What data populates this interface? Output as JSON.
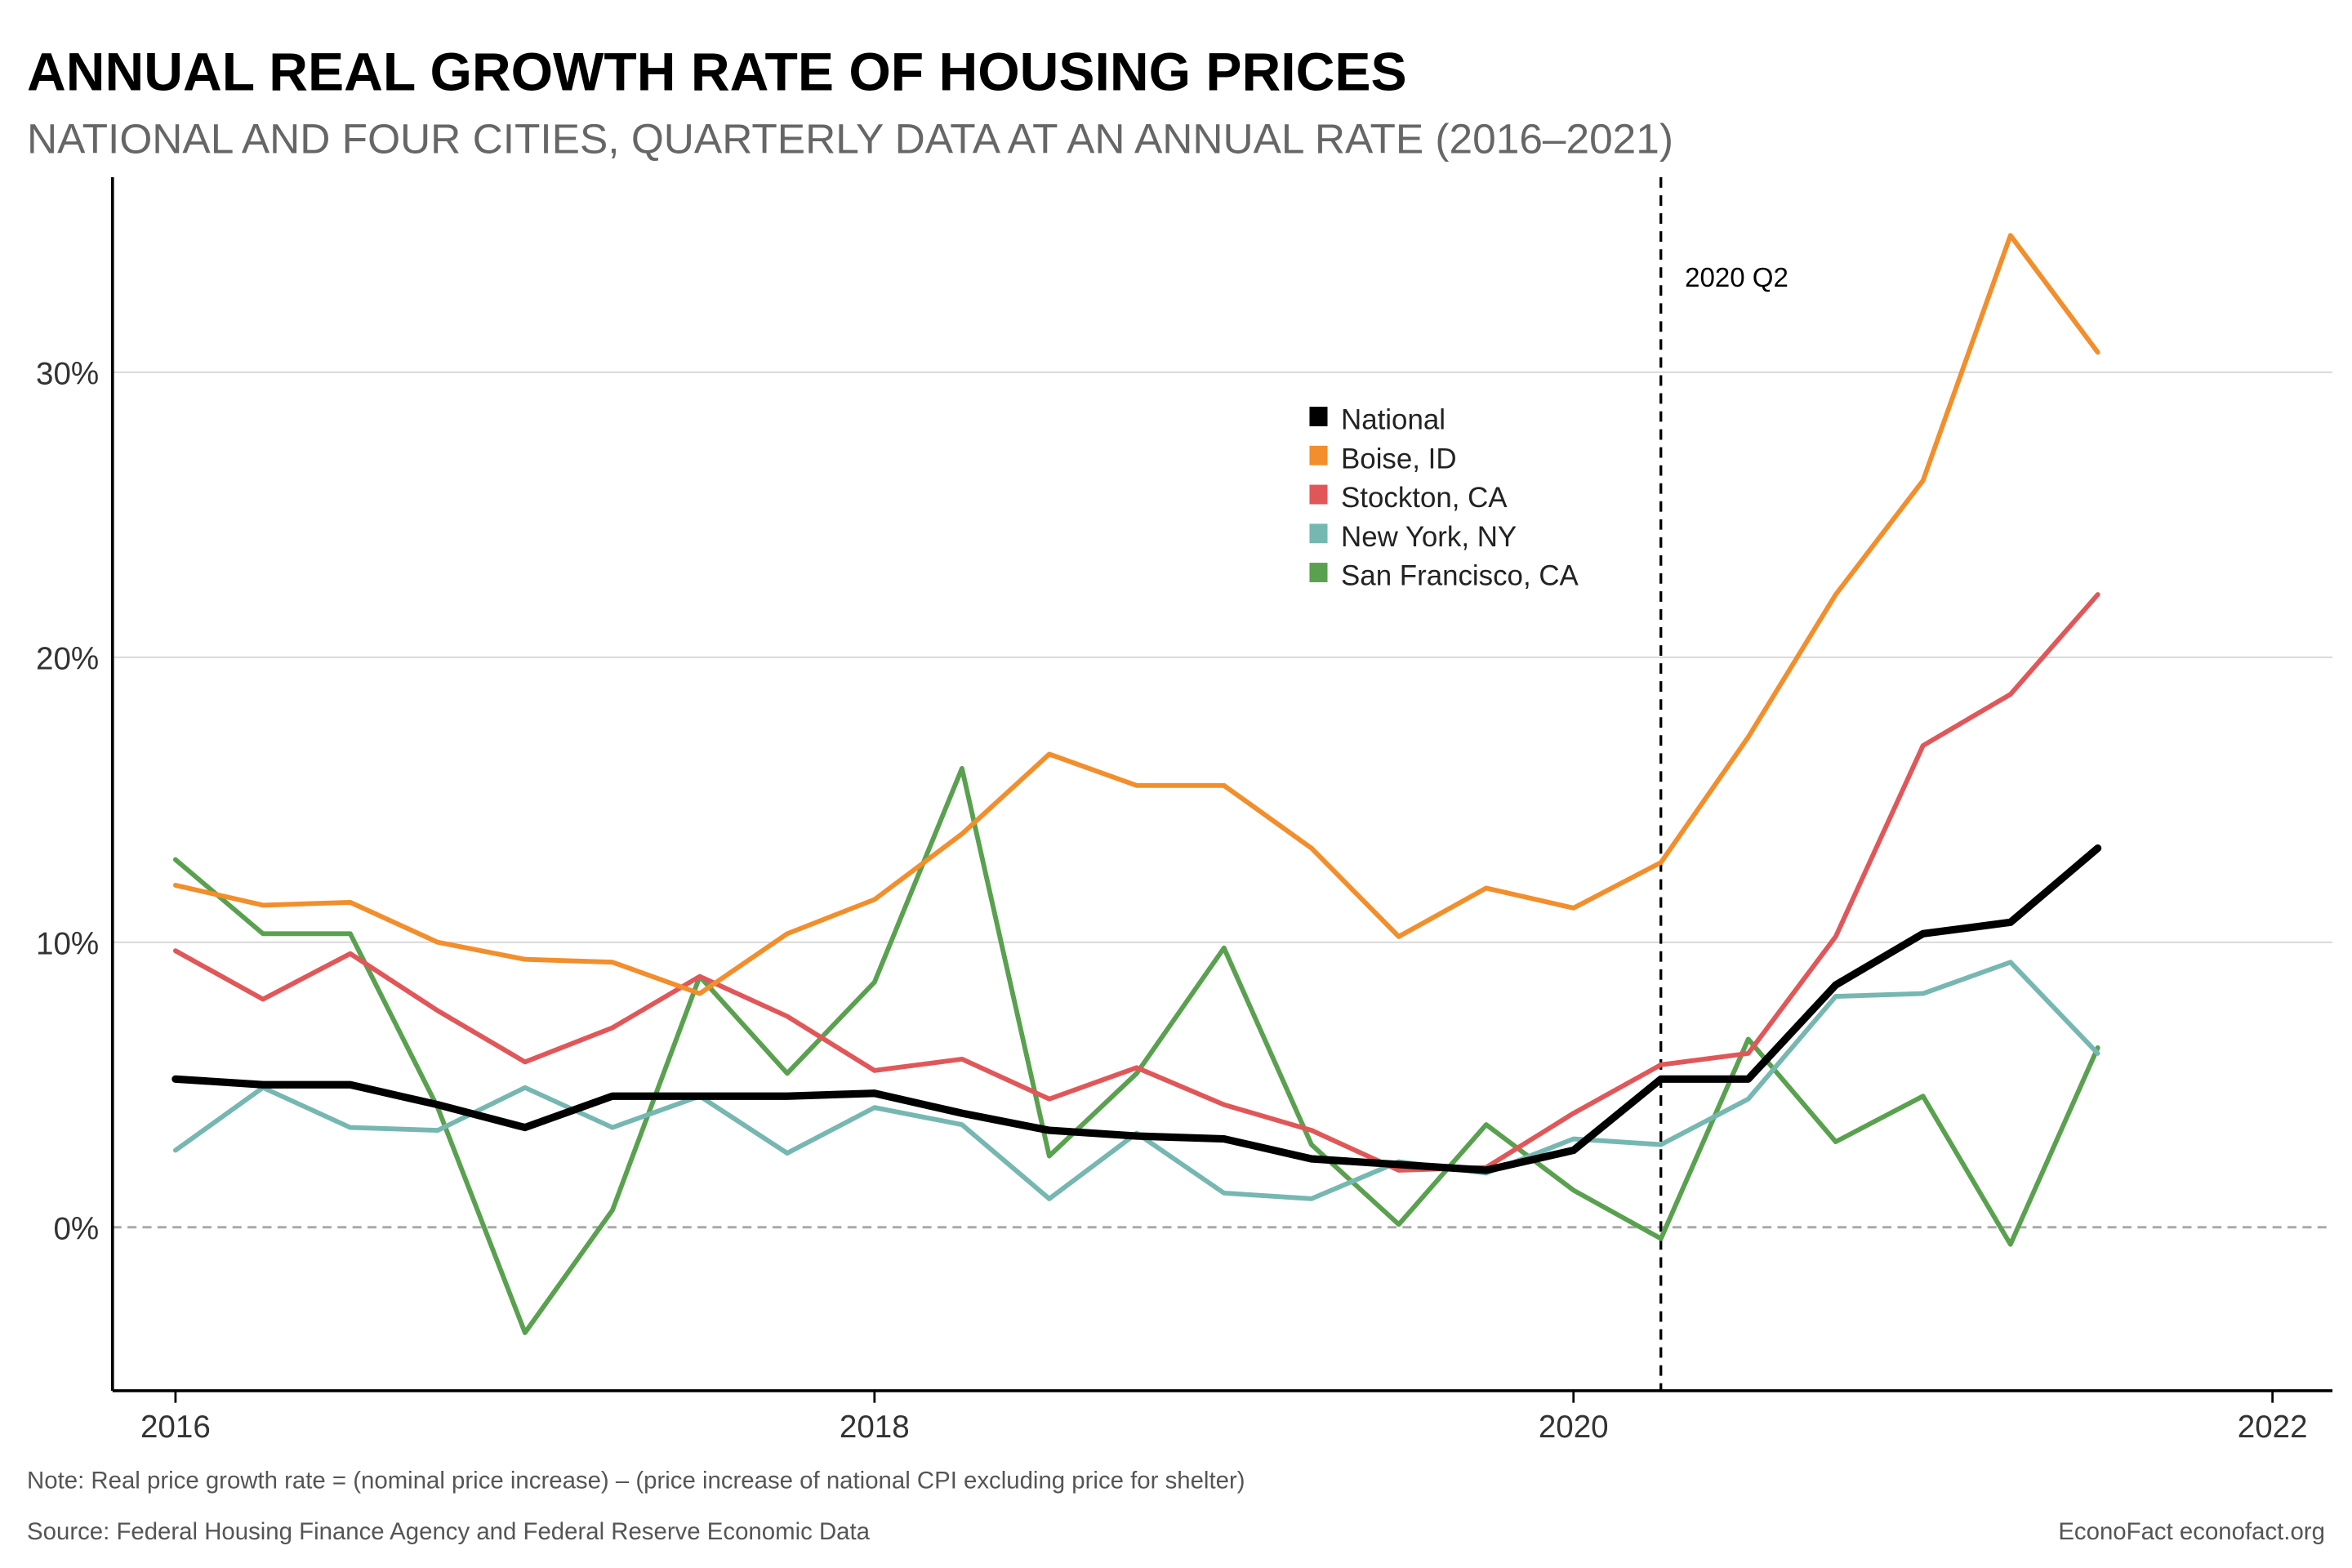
{
  "chart_data": {
    "type": "line",
    "title": "ANNUAL REAL GROWTH RATE OF HOUSING PRICES",
    "subtitle": "NATIONAL AND FOUR CITIES, QUARTERLY DATA AT AN ANNUAL RATE (2016–2021)",
    "xlabel": "",
    "ylabel": "",
    "xlim": [
      2016,
      2022
    ],
    "ylim": [
      -5.8,
      36.8
    ],
    "x_ticks": [
      "2016",
      "2018",
      "2020",
      "2022"
    ],
    "y_ticks": [
      "0%",
      "10%",
      "20%",
      "30%"
    ],
    "grid": "horizontal",
    "legend_position": "center-top",
    "x": [
      "2016 Q1",
      "2016 Q2",
      "2016 Q3",
      "2016 Q4",
      "2017 Q1",
      "2017 Q2",
      "2017 Q3",
      "2017 Q4",
      "2018 Q1",
      "2018 Q2",
      "2018 Q3",
      "2018 Q4",
      "2019 Q1",
      "2019 Q2",
      "2019 Q3",
      "2019 Q4",
      "2020 Q1",
      "2020 Q2",
      "2020 Q3",
      "2020 Q4",
      "2021 Q1",
      "2021 Q2",
      "2021 Q3"
    ],
    "series": [
      {
        "name": "National",
        "color": "#000000",
        "values": [
          5.2,
          5.0,
          5.0,
          4.3,
          3.5,
          4.6,
          4.6,
          4.6,
          4.7,
          4.0,
          3.4,
          3.2,
          3.1,
          2.4,
          2.2,
          2.0,
          2.7,
          5.2,
          5.2,
          8.5,
          10.3,
          10.7,
          13.3
        ]
      },
      {
        "name": "Boise, ID",
        "color": "#f28e2b",
        "values": [
          12.0,
          11.3,
          11.4,
          10.0,
          9.4,
          9.3,
          8.2,
          10.3,
          11.5,
          13.8,
          16.6,
          15.5,
          15.5,
          13.3,
          10.2,
          11.9,
          11.2,
          12.8,
          17.2,
          22.2,
          26.2,
          34.8,
          30.7
        ]
      },
      {
        "name": "Stockton, CA",
        "color": "#e15759",
        "values": [
          9.7,
          8.0,
          9.6,
          7.6,
          5.8,
          7.0,
          8.8,
          7.4,
          5.5,
          5.9,
          4.5,
          5.6,
          4.3,
          3.4,
          2.0,
          2.1,
          4.0,
          5.7,
          6.1,
          10.2,
          16.9,
          18.7,
          22.2
        ]
      },
      {
        "name": "New York, NY",
        "color": "#76b7b2",
        "values": [
          2.7,
          4.9,
          3.5,
          3.4,
          4.9,
          3.5,
          4.6,
          2.6,
          4.2,
          3.6,
          1.0,
          3.3,
          1.2,
          1.0,
          2.3,
          1.9,
          3.1,
          2.9,
          4.5,
          8.1,
          8.2,
          9.3,
          6.1
        ]
      },
      {
        "name": "San Francisco, CA",
        "color": "#59a14f",
        "values": [
          12.9,
          10.3,
          10.3,
          4.2,
          -3.7,
          0.6,
          8.8,
          5.4,
          8.6,
          16.1,
          2.5,
          5.4,
          9.8,
          2.9,
          0.1,
          3.6,
          1.3,
          -0.4,
          6.6,
          3.0,
          4.6,
          -0.6,
          6.3
        ]
      }
    ],
    "annotation": {
      "label": "2020 Q2",
      "x": "2020 Q2"
    },
    "note": "Note: Real price growth rate = (nominal price increase) – (price increase of national CPI excluding price for shelter)",
    "source": "Source: Federal Housing Finance Agency and Federal Reserve Economic Data",
    "credit": "EconoFact  econofact.org"
  }
}
